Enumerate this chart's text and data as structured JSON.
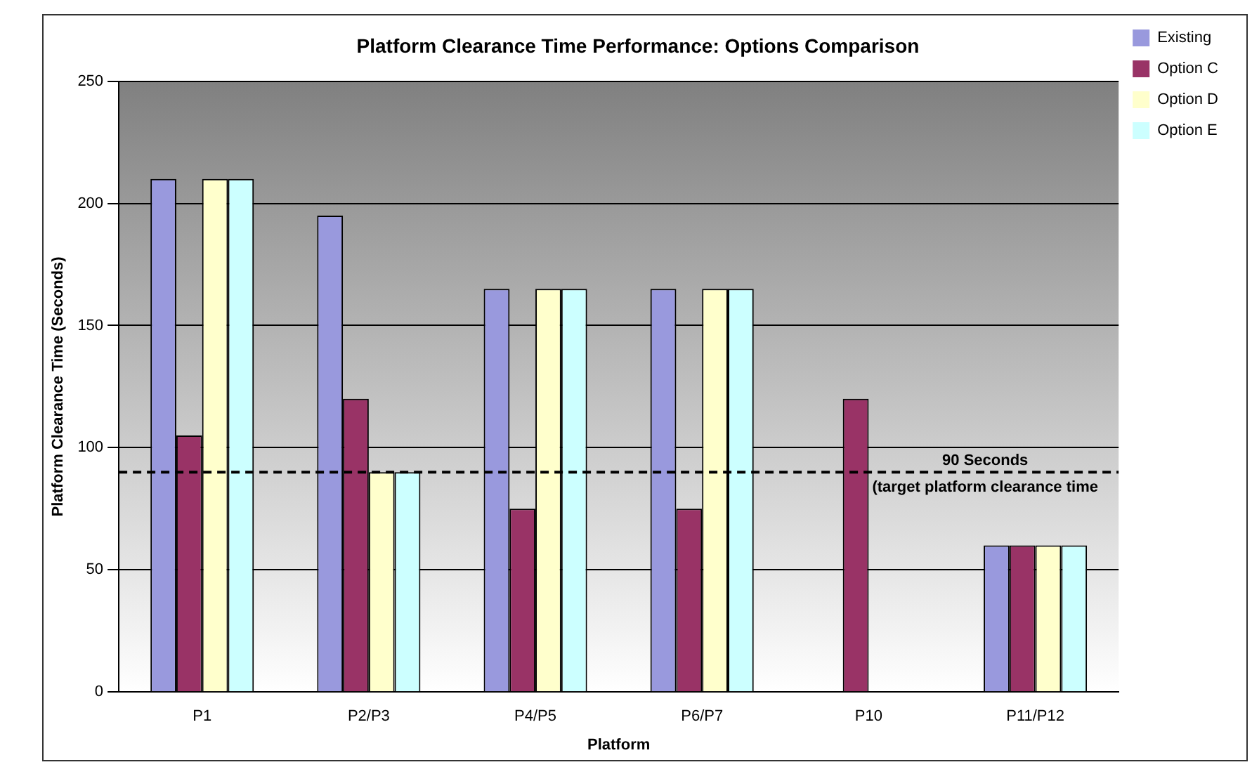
{
  "chart_data": {
    "type": "bar",
    "title": "Platform Clearance Time Performance: Options Comparison",
    "xlabel": "Platform",
    "ylabel": "Platform Clearance Time (Seconds)",
    "categories": [
      "P1",
      "P2/P3",
      "P4/P5",
      "P6/P7",
      "P10",
      "P11/P12"
    ],
    "series": [
      {
        "name": "Existing",
        "color": "#9999dd",
        "values": [
          210,
          195,
          165,
          165,
          null,
          60
        ]
      },
      {
        "name": "Option C",
        "color": "#993366",
        "values": [
          105,
          120,
          75,
          75,
          120,
          60
        ]
      },
      {
        "name": "Option D",
        "color": "#ffffcc",
        "values": [
          210,
          90,
          165,
          165,
          null,
          60
        ]
      },
      {
        "name": "Option E",
        "color": "#ccffff",
        "values": [
          210,
          90,
          165,
          165,
          null,
          60
        ]
      }
    ],
    "ylim": [
      0,
      250
    ],
    "yticks": [
      0,
      50,
      100,
      150,
      200,
      250
    ],
    "grid": "y",
    "legend": "top right",
    "ref_lines": [
      {
        "axis": "y",
        "value": 90,
        "label": "90 Seconds\n(target platform clearance time",
        "line_style": "dashed",
        "color": "#000000"
      }
    ]
  }
}
